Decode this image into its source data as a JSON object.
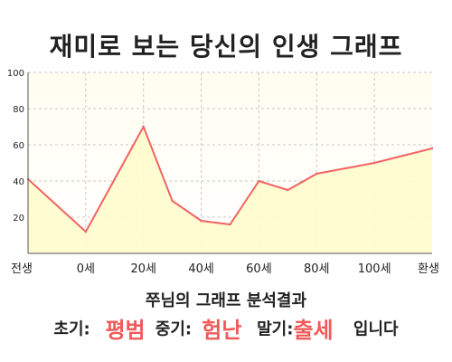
{
  "title": "재미로 보는 당신의 인생 그래프",
  "summary": "쭈님의 그래프 분석결과",
  "result": {
    "early_label": "초기:",
    "early_value": "평범",
    "middle_label": "중기:",
    "middle_value": "험난",
    "late_label": "말기:",
    "late_value": "출세",
    "ending": "입니다"
  },
  "colors": {
    "line": "#f26464",
    "fill": "#fffccc",
    "grid": "#c8c8c8"
  },
  "chart_data": {
    "type": "area",
    "x_tick_labels": [
      "전생",
      "0세",
      "20세",
      "40세",
      "60세",
      "80세",
      "100세",
      "환생"
    ],
    "y_ticks": [
      20,
      40,
      60,
      80,
      100
    ],
    "ylim": [
      0,
      100
    ],
    "grid": true,
    "x": [
      -20,
      0,
      10,
      20,
      30,
      40,
      50,
      60,
      70,
      80,
      90,
      100,
      110,
      120
    ],
    "values": [
      41,
      12,
      41,
      70,
      29,
      18,
      16,
      40,
      35,
      44,
      47,
      50,
      54,
      58
    ]
  }
}
